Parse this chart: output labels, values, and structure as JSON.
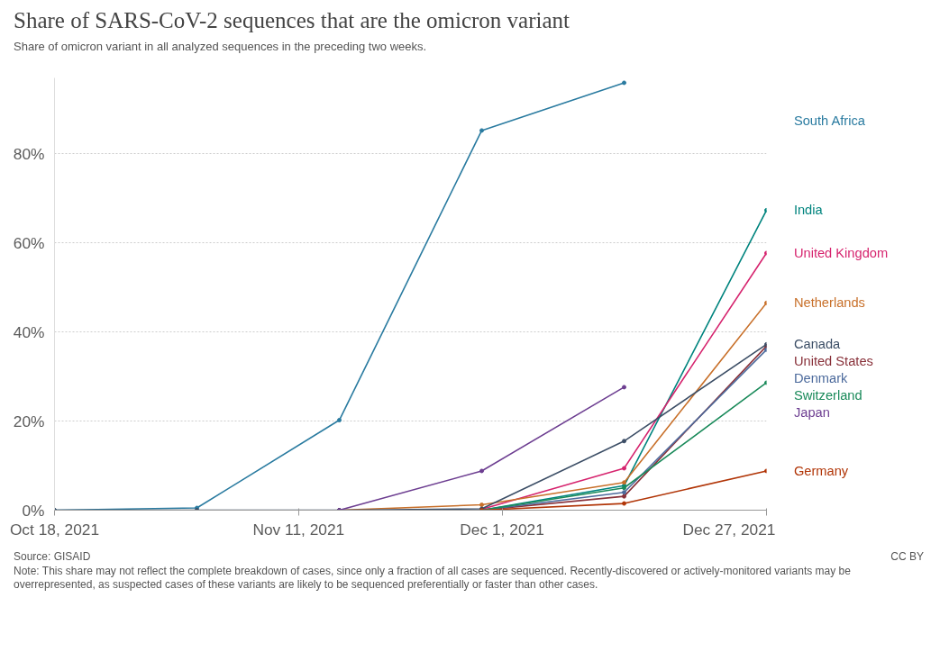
{
  "chart_data": {
    "type": "line",
    "title": "Share of SARS-CoV-2 sequences that are the omicron variant",
    "subtitle": "Share of omicron variant in all analyzed sequences in the preceding two weeks.",
    "x": [
      "2021-10-18",
      "2021-11-01",
      "2021-11-15",
      "2021-11-29",
      "2021-12-13",
      "2021-12-27"
    ],
    "series": [
      {
        "name": "South Africa",
        "color": "#2a7ba0",
        "values": [
          0,
          0.5,
          20.2,
          85.2,
          95.9,
          null
        ]
      },
      {
        "name": "India",
        "color": "#00847e",
        "values": [
          null,
          null,
          null,
          0,
          5.5,
          67.3
        ]
      },
      {
        "name": "United Kingdom",
        "color": "#d6246e",
        "values": [
          null,
          null,
          null,
          0.2,
          9.4,
          57.7
        ]
      },
      {
        "name": "Netherlands",
        "color": "#c8702a",
        "values": [
          null,
          null,
          0,
          1.2,
          6.2,
          46.5
        ]
      },
      {
        "name": "United States",
        "color": "#883039",
        "values": [
          null,
          null,
          null,
          0,
          3.1,
          36.8
        ]
      },
      {
        "name": "Canada",
        "color": "#3c4e66",
        "values": [
          0,
          0,
          0,
          0.3,
          15.5,
          37.2
        ]
      },
      {
        "name": "Denmark",
        "color": "#4c6a9c",
        "values": [
          null,
          null,
          null,
          0,
          4.0,
          36.0
        ]
      },
      {
        "name": "Switzerland",
        "color": "#1a8a5a",
        "values": [
          null,
          null,
          null,
          0,
          5.0,
          28.6
        ]
      },
      {
        "name": "Japan",
        "color": "#6d3e91",
        "values": [
          null,
          null,
          0,
          8.8,
          27.6,
          null
        ]
      },
      {
        "name": "Germany",
        "color": "#b13507",
        "values": [
          null,
          null,
          null,
          0,
          1.5,
          8.8
        ]
      }
    ],
    "xlim": [
      "2021-10-18",
      "2021-12-27"
    ],
    "xticks": [
      {
        "value": "2021-10-18",
        "label": "Oct 18, 2021"
      },
      {
        "value": "2021-11-11",
        "label": "Nov 11, 2021"
      },
      {
        "value": "2021-12-01",
        "label": "Dec 1, 2021"
      },
      {
        "value": "2021-12-27",
        "label": "Dec 27, 2021"
      }
    ],
    "ylim": [
      0,
      97
    ],
    "yticks": [
      {
        "value": 0,
        "label": "0%"
      },
      {
        "value": 20,
        "label": "20%"
      },
      {
        "value": 40,
        "label": "40%"
      },
      {
        "value": 60,
        "label": "60%"
      },
      {
        "value": 80,
        "label": "80%"
      }
    ],
    "grid": "y",
    "legend": false,
    "marker": "circle",
    "line_style": "solid",
    "annotations": [
      "Source: GISAID",
      "CC BY",
      "Note: This share may not reflect the complete breakdown of cases, since only a fraction of all cases are sequenced. Recently-discovered or actively-monitored variants may be overrepresented, as suspected cases of these variants are likely to be sequenced preferentially or faster than other cases."
    ]
  }
}
